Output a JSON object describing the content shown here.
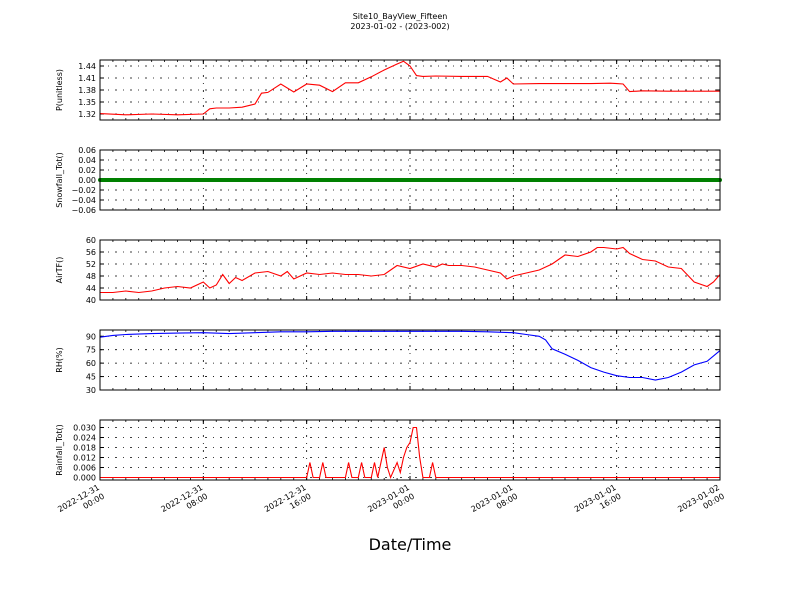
{
  "chart_data": {
    "type": "line",
    "title": "Site10_BayView_Fifteen",
    "subtitle": "2023-01-02 - (2023-002)",
    "xlabel": "Date/Time",
    "x_range_hours": [
      0,
      48
    ],
    "x_ticks": [
      {
        "h": 0,
        "line1": "2022-12-31",
        "line2": "00:00"
      },
      {
        "h": 8,
        "line1": "2022-12-31",
        "line2": "08:00"
      },
      {
        "h": 16,
        "line1": "2022-12-31",
        "line2": "16:00"
      },
      {
        "h": 24,
        "line1": "2023-01-01",
        "line2": "00:00"
      },
      {
        "h": 32,
        "line1": "2023-01-01",
        "line2": "08:00"
      },
      {
        "h": 40,
        "line1": "2023-01-01",
        "line2": "16:00"
      },
      {
        "h": 48,
        "line1": "2023-01-02",
        "line2": "00:00"
      }
    ],
    "grid": true,
    "panels": [
      {
        "ylabel": "P(unitless)",
        "color": "#ff0000",
        "ylim": [
          1.305,
          1.455
        ],
        "yticks": [
          "1.32",
          "1.35",
          "1.38",
          "1.41",
          "1.44"
        ],
        "ytick_values": [
          1.32,
          1.35,
          1.38,
          1.41,
          1.44
        ],
        "x": [
          0,
          2,
          4,
          6,
          8,
          8.5,
          9,
          10,
          11,
          12,
          12.5,
          13,
          14,
          15,
          16,
          17,
          18,
          19,
          20,
          21,
          22,
          23,
          23.5,
          24,
          24.5,
          25,
          26,
          28,
          30,
          31,
          31.5,
          32,
          34,
          36,
          38,
          39.5,
          40,
          40.5,
          41,
          42,
          44,
          46,
          48
        ],
        "y": [
          1.321,
          1.318,
          1.32,
          1.318,
          1.32,
          1.333,
          1.335,
          1.335,
          1.337,
          1.345,
          1.372,
          1.374,
          1.395,
          1.375,
          1.395,
          1.392,
          1.376,
          1.398,
          1.398,
          1.413,
          1.43,
          1.445,
          1.452,
          1.44,
          1.416,
          1.414,
          1.415,
          1.414,
          1.414,
          1.4,
          1.41,
          1.395,
          1.396,
          1.396,
          1.396,
          1.397,
          1.396,
          1.395,
          1.376,
          1.378,
          1.377,
          1.377,
          1.377
        ]
      },
      {
        "ylabel": "Snowfall_Tot()",
        "color": "#008000",
        "ylim": [
          -0.06,
          0.06
        ],
        "yticks": [
          "−0.06",
          "−0.04",
          "−0.02",
          "0.00",
          "0.02",
          "0.04",
          "0.06"
        ],
        "ytick_values": [
          -0.06,
          -0.04,
          -0.02,
          0,
          0.02,
          0.04,
          0.06
        ],
        "x": [
          0,
          48
        ],
        "y": [
          0,
          0
        ],
        "marker": "dot"
      },
      {
        "ylabel": "AirTF()",
        "color": "#ff0000",
        "ylim": [
          40,
          60
        ],
        "yticks": [
          "40",
          "44",
          "48",
          "52",
          "56",
          "60"
        ],
        "ytick_values": [
          40,
          44,
          48,
          52,
          56,
          60
        ],
        "x": [
          0,
          1,
          2,
          3,
          4,
          5,
          6,
          7,
          8,
          8.5,
          9,
          9.5,
          10,
          10.5,
          11,
          12,
          13,
          14,
          14.5,
          15,
          16,
          17,
          18,
          19,
          20,
          21,
          22,
          23,
          24,
          25,
          26,
          26.5,
          27,
          28,
          29,
          30,
          31,
          31.5,
          32,
          33,
          34,
          35,
          36,
          37,
          38,
          38.5,
          39,
          40,
          40.5,
          41,
          42,
          43,
          44,
          45,
          46,
          47,
          47.5,
          48
        ],
        "y": [
          42.5,
          42.5,
          43,
          42.5,
          43,
          44,
          44.5,
          44,
          46,
          44,
          45,
          48.5,
          45.5,
          47.5,
          46.5,
          49,
          49.5,
          48,
          49.5,
          47,
          49,
          48.5,
          49,
          48.5,
          48.5,
          48,
          48.5,
          51.5,
          50.5,
          52,
          51,
          52,
          51.5,
          51.5,
          51,
          50,
          49,
          47,
          48,
          49,
          50,
          52,
          55,
          54.5,
          56,
          57.5,
          57.5,
          57,
          57.5,
          55.5,
          53.5,
          53,
          51,
          50.5,
          46,
          44.5,
          46,
          48.5
        ]
      },
      {
        "ylabel": "RH(%)",
        "color": "#0000ff",
        "ylim": [
          30,
          97
        ],
        "yticks": [
          "30",
          "45",
          "60",
          "75",
          "90"
        ],
        "ytick_values": [
          30,
          45,
          60,
          75,
          90
        ],
        "x": [
          0,
          1,
          2,
          4,
          6,
          8,
          10,
          12,
          14,
          16,
          18,
          20,
          22,
          24,
          26,
          28,
          30,
          32,
          33,
          34,
          34.5,
          35,
          36,
          37,
          38,
          39,
          40,
          41,
          42,
          43,
          44,
          45,
          46,
          47,
          48
        ],
        "y": [
          89,
          91,
          92,
          93,
          93.5,
          94,
          93,
          94,
          95,
          95,
          95.5,
          95.5,
          95.5,
          95.5,
          95.5,
          95.5,
          95,
          94,
          92,
          90,
          86,
          76,
          70,
          63,
          55,
          50,
          46,
          44,
          44,
          41,
          44,
          50,
          58,
          62,
          74
        ]
      },
      {
        "ylabel": "Rainfall_Tot()",
        "color": "#ff0000",
        "ylim": [
          -0.0015,
          0.0345
        ],
        "yticks": [
          "0.000",
          "0.006",
          "0.012",
          "0.018",
          "0.024",
          "0.030"
        ],
        "ytick_values": [
          0,
          0.006,
          0.012,
          0.018,
          0.024,
          0.03
        ],
        "x": [
          0,
          16,
          16.25,
          16.5,
          17,
          17.25,
          17.5,
          19,
          19.25,
          19.5,
          20,
          20.25,
          20.5,
          21,
          21.25,
          21.5,
          22,
          22.25,
          22.5,
          23,
          23.25,
          23.5,
          23.75,
          24,
          24.25,
          24.5,
          24.75,
          25,
          25.5,
          25.75,
          26,
          27,
          48
        ],
        "y": [
          0,
          0,
          0.009,
          0,
          0,
          0.009,
          0,
          0,
          0.009,
          0,
          0,
          0.009,
          0,
          0,
          0.009,
          0,
          0.018,
          0.006,
          0,
          0.009,
          0.003,
          0.012,
          0.018,
          0.021,
          0.03,
          0.03,
          0.012,
          0,
          0,
          0.009,
          0,
          0,
          0
        ]
      }
    ]
  }
}
